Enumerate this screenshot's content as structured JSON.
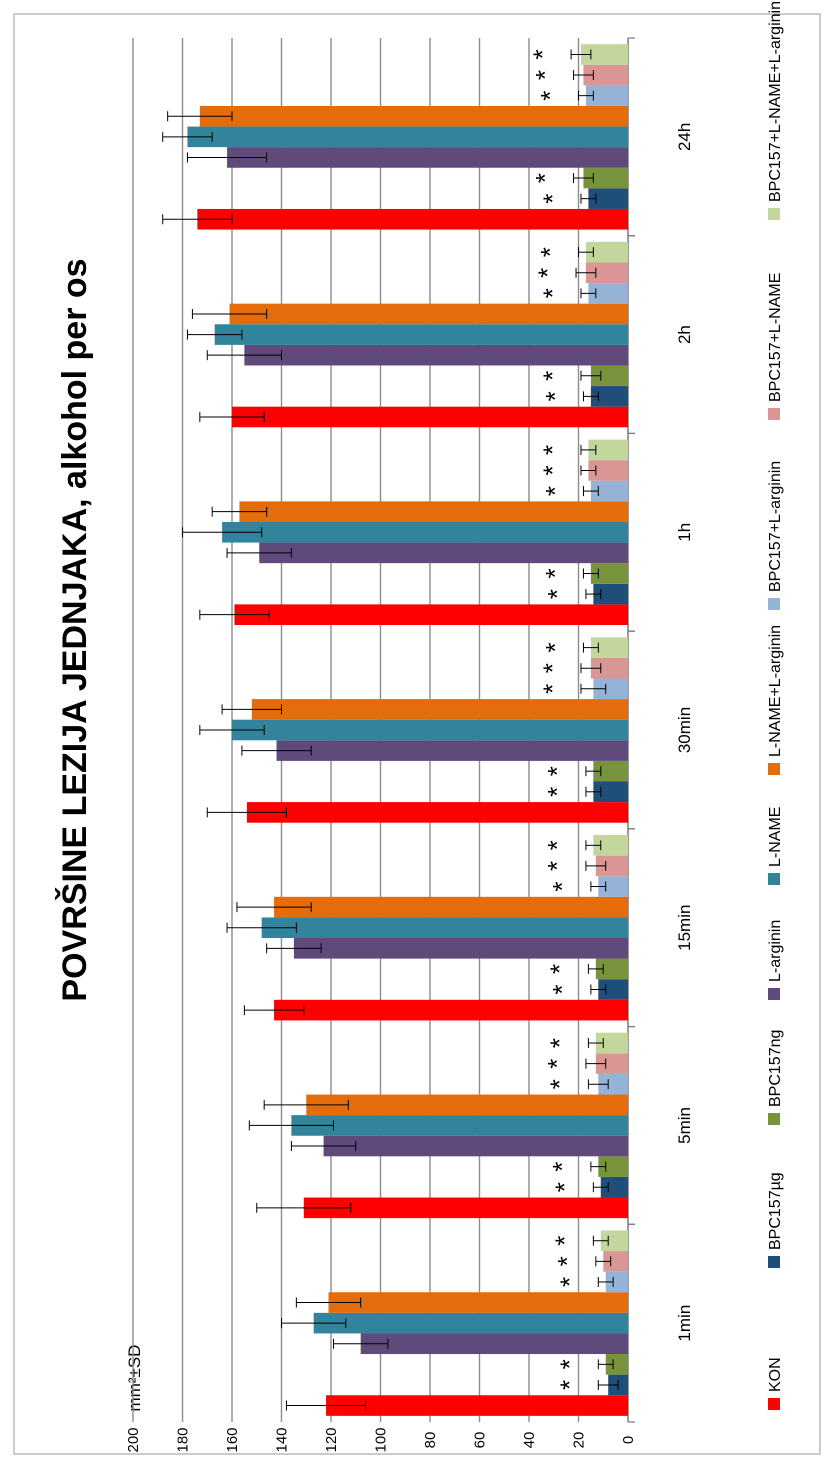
{
  "chart_data": {
    "type": "bar",
    "orientation": "rotated-90",
    "title": "POVRŠINE LEZIJA JEDNJAKA, alkohol per os",
    "ylabel": "mm²±SD",
    "ylim": [
      0,
      200
    ],
    "yticks": [
      0,
      20,
      40,
      60,
      80,
      100,
      120,
      140,
      160,
      180,
      200
    ],
    "grid": true,
    "legend_position": "bottom",
    "categories": [
      "1min",
      "5min",
      "15min",
      "30min",
      "1h",
      "2h",
      "24h"
    ],
    "significance_marker": "*",
    "series": [
      {
        "name": "KON",
        "color": "#ff0000",
        "values": [
          122,
          131,
          143,
          154,
          159,
          160,
          174
        ],
        "sd": [
          16,
          19,
          12,
          16,
          14,
          13,
          14
        ],
        "significant": [
          false,
          false,
          false,
          false,
          false,
          false,
          false
        ]
      },
      {
        "name": "BPC157µg",
        "color": "#1f4e79",
        "values": [
          8,
          11,
          12,
          14,
          14,
          15,
          16
        ],
        "sd": [
          4,
          3,
          3,
          3,
          3,
          3,
          3
        ],
        "significant": [
          true,
          true,
          true,
          true,
          true,
          true,
          true
        ]
      },
      {
        "name": "BPC157ng",
        "color": "#77933c",
        "values": [
          9,
          12,
          13,
          14,
          15,
          15,
          18
        ],
        "sd": [
          3,
          3,
          3,
          3,
          3,
          4,
          4
        ],
        "significant": [
          true,
          true,
          true,
          true,
          true,
          true,
          true
        ]
      },
      {
        "name": "L-arginin",
        "color": "#604a7b",
        "values": [
          108,
          123,
          135,
          142,
          149,
          155,
          162
        ],
        "sd": [
          11,
          13,
          11,
          14,
          13,
          15,
          16
        ],
        "significant": [
          false,
          false,
          false,
          false,
          false,
          false,
          false
        ]
      },
      {
        "name": "L-NAME",
        "color": "#31849b",
        "values": [
          127,
          136,
          148,
          160,
          164,
          167,
          178
        ],
        "sd": [
          13,
          17,
          14,
          13,
          16,
          11,
          10
        ],
        "significant": [
          false,
          false,
          false,
          false,
          false,
          false,
          false
        ]
      },
      {
        "name": "L-NAME+L-arginin",
        "color": "#e46c0a",
        "values": [
          121,
          130,
          143,
          152,
          157,
          161,
          173
        ],
        "sd": [
          13,
          17,
          15,
          12,
          11,
          15,
          13
        ],
        "significant": [
          false,
          false,
          false,
          false,
          false,
          false,
          false
        ]
      },
      {
        "name": "BPC157+L-arginin",
        "color": "#95b3d7",
        "values": [
          9,
          12,
          12,
          14,
          15,
          16,
          17
        ],
        "sd": [
          3,
          4,
          3,
          5,
          3,
          3,
          3
        ],
        "significant": [
          true,
          true,
          true,
          true,
          true,
          true,
          true
        ]
      },
      {
        "name": "BPC157+L-NAME",
        "color": "#d99694",
        "values": [
          10,
          13,
          13,
          15,
          16,
          17,
          18
        ],
        "sd": [
          3,
          4,
          4,
          4,
          3,
          4,
          4
        ],
        "significant": [
          true,
          true,
          true,
          true,
          true,
          true,
          true
        ]
      },
      {
        "name": "BPC157+L-NAME+L-arginin",
        "color": "#c3d69b",
        "values": [
          11,
          13,
          14,
          15,
          16,
          17,
          19
        ],
        "sd": [
          3,
          3,
          3,
          3,
          3,
          3,
          4
        ],
        "significant": [
          true,
          true,
          true,
          true,
          true,
          true,
          true
        ]
      }
    ]
  }
}
